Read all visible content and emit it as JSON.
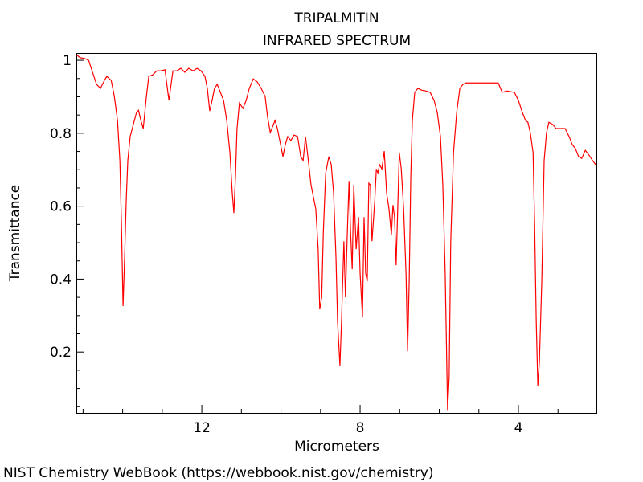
{
  "chart_data": {
    "type": "line",
    "title": "TRIPALMITIN",
    "subtitle": "INFRARED SPECTRUM",
    "x_label": "Micrometers",
    "y_label": "Transmittance",
    "footer": "NIST Chemistry WebBook (https://webbook.nist.gov/chemistry)",
    "color": "#ff0000",
    "xlim": [
      15.17,
      2.03
    ],
    "ylim": [
      0.033,
      1.02
    ],
    "xticks": [
      12,
      8,
      4
    ],
    "yticks": [
      0.2,
      0.4,
      0.6,
      0.8,
      1
    ],
    "xminor_ticks": [
      15,
      14,
      13,
      11,
      10,
      9,
      7,
      6,
      5,
      3
    ],
    "yminor_ticks": [
      0.05,
      0.1,
      0.15,
      0.25,
      0.3,
      0.35,
      0.45,
      0.5,
      0.55,
      0.65,
      0.7,
      0.75,
      0.85,
      0.9,
      0.95
    ],
    "x": [
      15.17,
      15.07,
      14.96,
      14.86,
      14.76,
      14.66,
      14.56,
      14.46,
      14.4,
      14.29,
      14.21,
      14.13,
      14.07,
      14.03,
      13.99,
      13.95,
      13.91,
      13.87,
      13.81,
      13.73,
      13.65,
      13.6,
      13.54,
      13.48,
      13.4,
      13.34,
      13.24,
      13.14,
      13.04,
      12.93,
      12.87,
      12.83,
      12.79,
      12.73,
      12.63,
      12.53,
      12.43,
      12.33,
      12.22,
      12.12,
      12.02,
      11.92,
      11.86,
      11.8,
      11.74,
      11.68,
      11.61,
      11.53,
      11.45,
      11.37,
      11.29,
      11.23,
      11.19,
      11.15,
      11.11,
      11.05,
      10.96,
      10.88,
      10.8,
      10.7,
      10.6,
      10.5,
      10.4,
      10.34,
      10.27,
      10.19,
      10.15,
      10.09,
      10.03,
      9.95,
      9.89,
      9.83,
      9.75,
      9.67,
      9.58,
      9.5,
      9.44,
      9.38,
      9.32,
      9.24,
      9.18,
      9.12,
      9.06,
      9.02,
      8.97,
      8.93,
      8.87,
      8.79,
      8.73,
      8.67,
      8.61,
      8.57,
      8.51,
      8.47,
      8.41,
      8.37,
      8.33,
      8.28,
      8.24,
      8.2,
      8.16,
      8.1,
      8.04,
      8.0,
      7.94,
      7.9,
      7.86,
      7.82,
      7.78,
      7.74,
      7.7,
      7.63,
      7.59,
      7.55,
      7.51,
      7.45,
      7.39,
      7.33,
      7.27,
      7.21,
      7.17,
      7.13,
      7.09,
      7.05,
      7.01,
      6.96,
      6.9,
      6.84,
      6.8,
      6.76,
      6.72,
      6.68,
      6.62,
      6.54,
      6.44,
      6.34,
      6.23,
      6.13,
      6.05,
      5.97,
      5.91,
      5.85,
      5.79,
      5.75,
      5.71,
      5.64,
      5.56,
      5.48,
      5.4,
      5.32,
      5.12,
      4.91,
      4.71,
      4.51,
      4.41,
      4.3,
      4.1,
      4.0,
      3.9,
      3.82,
      3.76,
      3.7,
      3.63,
      3.59,
      3.55,
      3.51,
      3.47,
      3.41,
      3.35,
      3.29,
      3.23,
      3.13,
      3.05,
      2.94,
      2.82,
      2.72,
      2.64,
      2.56,
      2.48,
      2.4,
      2.31,
      2.23,
      2.15,
      2.03
    ],
    "values": [
      1.015,
      1.007,
      1.005,
      1.0,
      0.967,
      0.934,
      0.923,
      0.945,
      0.956,
      0.945,
      0.901,
      0.835,
      0.725,
      0.548,
      0.326,
      0.46,
      0.614,
      0.725,
      0.791,
      0.824,
      0.857,
      0.863,
      0.835,
      0.813,
      0.901,
      0.956,
      0.96,
      0.971,
      0.971,
      0.974,
      0.923,
      0.89,
      0.923,
      0.971,
      0.971,
      0.978,
      0.967,
      0.978,
      0.971,
      0.978,
      0.971,
      0.956,
      0.923,
      0.861,
      0.89,
      0.923,
      0.934,
      0.912,
      0.89,
      0.835,
      0.747,
      0.636,
      0.581,
      0.68,
      0.813,
      0.883,
      0.868,
      0.89,
      0.923,
      0.949,
      0.941,
      0.923,
      0.901,
      0.846,
      0.802,
      0.824,
      0.835,
      0.813,
      0.78,
      0.736,
      0.769,
      0.791,
      0.78,
      0.795,
      0.791,
      0.736,
      0.725,
      0.791,
      0.736,
      0.658,
      0.625,
      0.592,
      0.482,
      0.317,
      0.35,
      0.526,
      0.691,
      0.736,
      0.714,
      0.636,
      0.46,
      0.284,
      0.163,
      0.284,
      0.504,
      0.35,
      0.504,
      0.669,
      0.526,
      0.427,
      0.658,
      0.482,
      0.57,
      0.416,
      0.295,
      0.57,
      0.416,
      0.394,
      0.663,
      0.658,
      0.504,
      0.614,
      0.702,
      0.691,
      0.714,
      0.702,
      0.751,
      0.636,
      0.592,
      0.522,
      0.603,
      0.57,
      0.438,
      0.592,
      0.747,
      0.702,
      0.592,
      0.416,
      0.202,
      0.394,
      0.68,
      0.835,
      0.912,
      0.923,
      0.918,
      0.916,
      0.912,
      0.89,
      0.857,
      0.791,
      0.658,
      0.416,
      0.041,
      0.129,
      0.504,
      0.747,
      0.857,
      0.923,
      0.934,
      0.938,
      0.938,
      0.938,
      0.938,
      0.938,
      0.912,
      0.916,
      0.912,
      0.89,
      0.857,
      0.835,
      0.83,
      0.802,
      0.747,
      0.548,
      0.284,
      0.107,
      0.174,
      0.394,
      0.725,
      0.802,
      0.83,
      0.824,
      0.813,
      0.813,
      0.813,
      0.791,
      0.769,
      0.758,
      0.736,
      0.731,
      0.753,
      0.742,
      0.729,
      0.711
    ]
  }
}
